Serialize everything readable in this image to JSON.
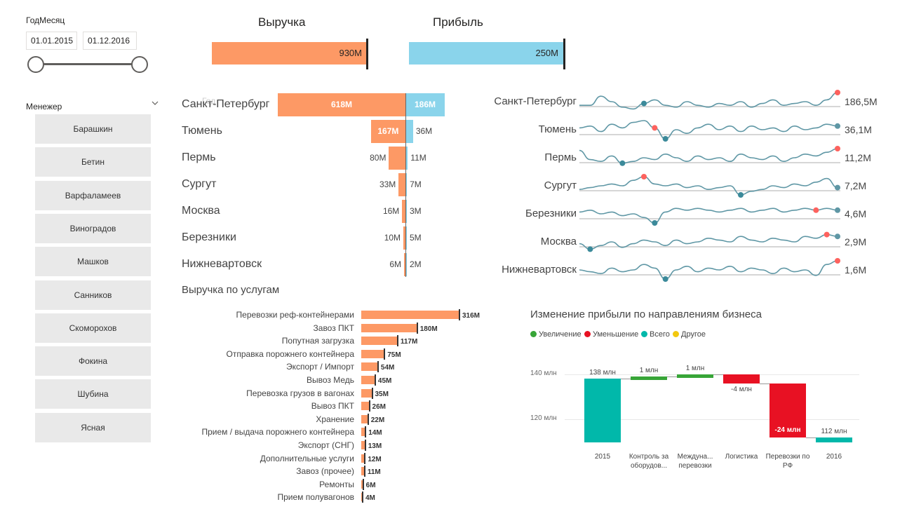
{
  "date_slicer": {
    "title": "ГодМесяц",
    "start": "01.01.2015",
    "end": "01.12.2016"
  },
  "manager_slicer": {
    "title": "Менежер",
    "items": [
      "Барашкин",
      "Бетин",
      "Варфаламеев",
      "Виноградов",
      "Машков",
      "Санников",
      "Скоморохов",
      "Фокина",
      "Шубина",
      "Ясная"
    ]
  },
  "kpi": {
    "revenue": {
      "title": "Выручка",
      "value": "930M",
      "color": "#fd9965"
    },
    "profit": {
      "title": "Прибыль",
      "value": "250M",
      "color": "#8ad4eb"
    }
  },
  "city_funnel": {
    "ghost_label": "Год",
    "cities": [
      {
        "name": "Санкт-Петербург",
        "revenue": "618M",
        "revenue_num": 618,
        "profit": "186M",
        "profit_num": 186
      },
      {
        "name": "Тюмень",
        "revenue": "167M",
        "revenue_num": 167,
        "profit": "36M",
        "profit_num": 36
      },
      {
        "name": "Пермь",
        "revenue": "80M",
        "revenue_num": 80,
        "profit": "11M",
        "profit_num": 11
      },
      {
        "name": "Сургут",
        "revenue": "33M",
        "revenue_num": 33,
        "profit": "7M",
        "profit_num": 7
      },
      {
        "name": "Москва",
        "revenue": "16M",
        "revenue_num": 16,
        "profit": "3M",
        "profit_num": 3
      },
      {
        "name": "Березники",
        "revenue": "10M",
        "revenue_num": 10,
        "profit": "5M",
        "profit_num": 5
      },
      {
        "name": "Нижневартовск",
        "revenue": "6M",
        "revenue_num": 6,
        "profit": "2M",
        "profit_num": 2
      }
    ]
  },
  "sparklines": [
    {
      "name": "Санкт-Петербург",
      "value": "186,5M"
    },
    {
      "name": "Тюмень",
      "value": "36,1M"
    },
    {
      "name": "Пермь",
      "value": "11,2M"
    },
    {
      "name": "Сургут",
      "value": "7,2M"
    },
    {
      "name": "Березники",
      "value": "4,6M"
    },
    {
      "name": "Москва",
      "value": "2,9M"
    },
    {
      "name": "Нижневартовск",
      "value": "1,6M"
    }
  ],
  "services": {
    "title": "Выручка по услугам",
    "items": [
      {
        "name": "Перевозки реф-контейнерами",
        "value": "316M",
        "num": 316
      },
      {
        "name": "Завоз ПКТ",
        "value": "180M",
        "num": 180
      },
      {
        "name": "Попутная загрузка",
        "value": "117M",
        "num": 117
      },
      {
        "name": "Отправка порожнего контейнера",
        "value": "75M",
        "num": 75
      },
      {
        "name": "Экспорт / Импорт",
        "value": "54M",
        "num": 54
      },
      {
        "name": "Вывоз Медь",
        "value": "45M",
        "num": 45
      },
      {
        "name": "Перевозка грузов в вагонах",
        "value": "35M",
        "num": 35
      },
      {
        "name": "Вывоз ПКТ",
        "value": "26M",
        "num": 26
      },
      {
        "name": "Хранение",
        "value": "22M",
        "num": 22
      },
      {
        "name": "Прием / выдача порожнего контейнера",
        "value": "14M",
        "num": 14
      },
      {
        "name": "Экспорт (СНГ)",
        "value": "13M",
        "num": 13
      },
      {
        "name": "Дополнительные услуги",
        "value": "12M",
        "num": 12
      },
      {
        "name": "Завоз (прочее)",
        "value": "11M",
        "num": 11
      },
      {
        "name": "Ремонты",
        "value": "6M",
        "num": 6
      },
      {
        "name": "Прием полувагонов",
        "value": "4M",
        "num": 4
      }
    ]
  },
  "waterfall": {
    "title": "Изменение прибыли по направлениям бизнеса",
    "legend": [
      {
        "label": "Увеличение",
        "color": "#37a537"
      },
      {
        "label": "Уменьшение",
        "color": "#e81123"
      },
      {
        "label": "Всего",
        "color": "#01b8aa"
      },
      {
        "label": "Другое",
        "color": "#f2c80f"
      }
    ],
    "y_ticks": [
      "140 млн",
      "120 млн"
    ],
    "bars": [
      {
        "cat": "2015",
        "label": "138 млн",
        "type": "total",
        "start": 0,
        "end": 138
      },
      {
        "cat": "Контроль за оборудов...",
        "label": "1 млн",
        "type": "increase",
        "start": 138,
        "end": 139
      },
      {
        "cat": "Междуна... перевозки",
        "label": "1 млн",
        "type": "increase",
        "start": 139,
        "end": 140
      },
      {
        "cat": "Логистика",
        "label": "-4 млн",
        "type": "decrease",
        "start": 140,
        "end": 136
      },
      {
        "cat": "Перевозки по РФ",
        "label": "-24 млн",
        "type": "decrease",
        "start": 136,
        "end": 112
      },
      {
        "cat": "2016",
        "label": "112 млн",
        "type": "total",
        "start": 0,
        "end": 112
      }
    ]
  }
}
